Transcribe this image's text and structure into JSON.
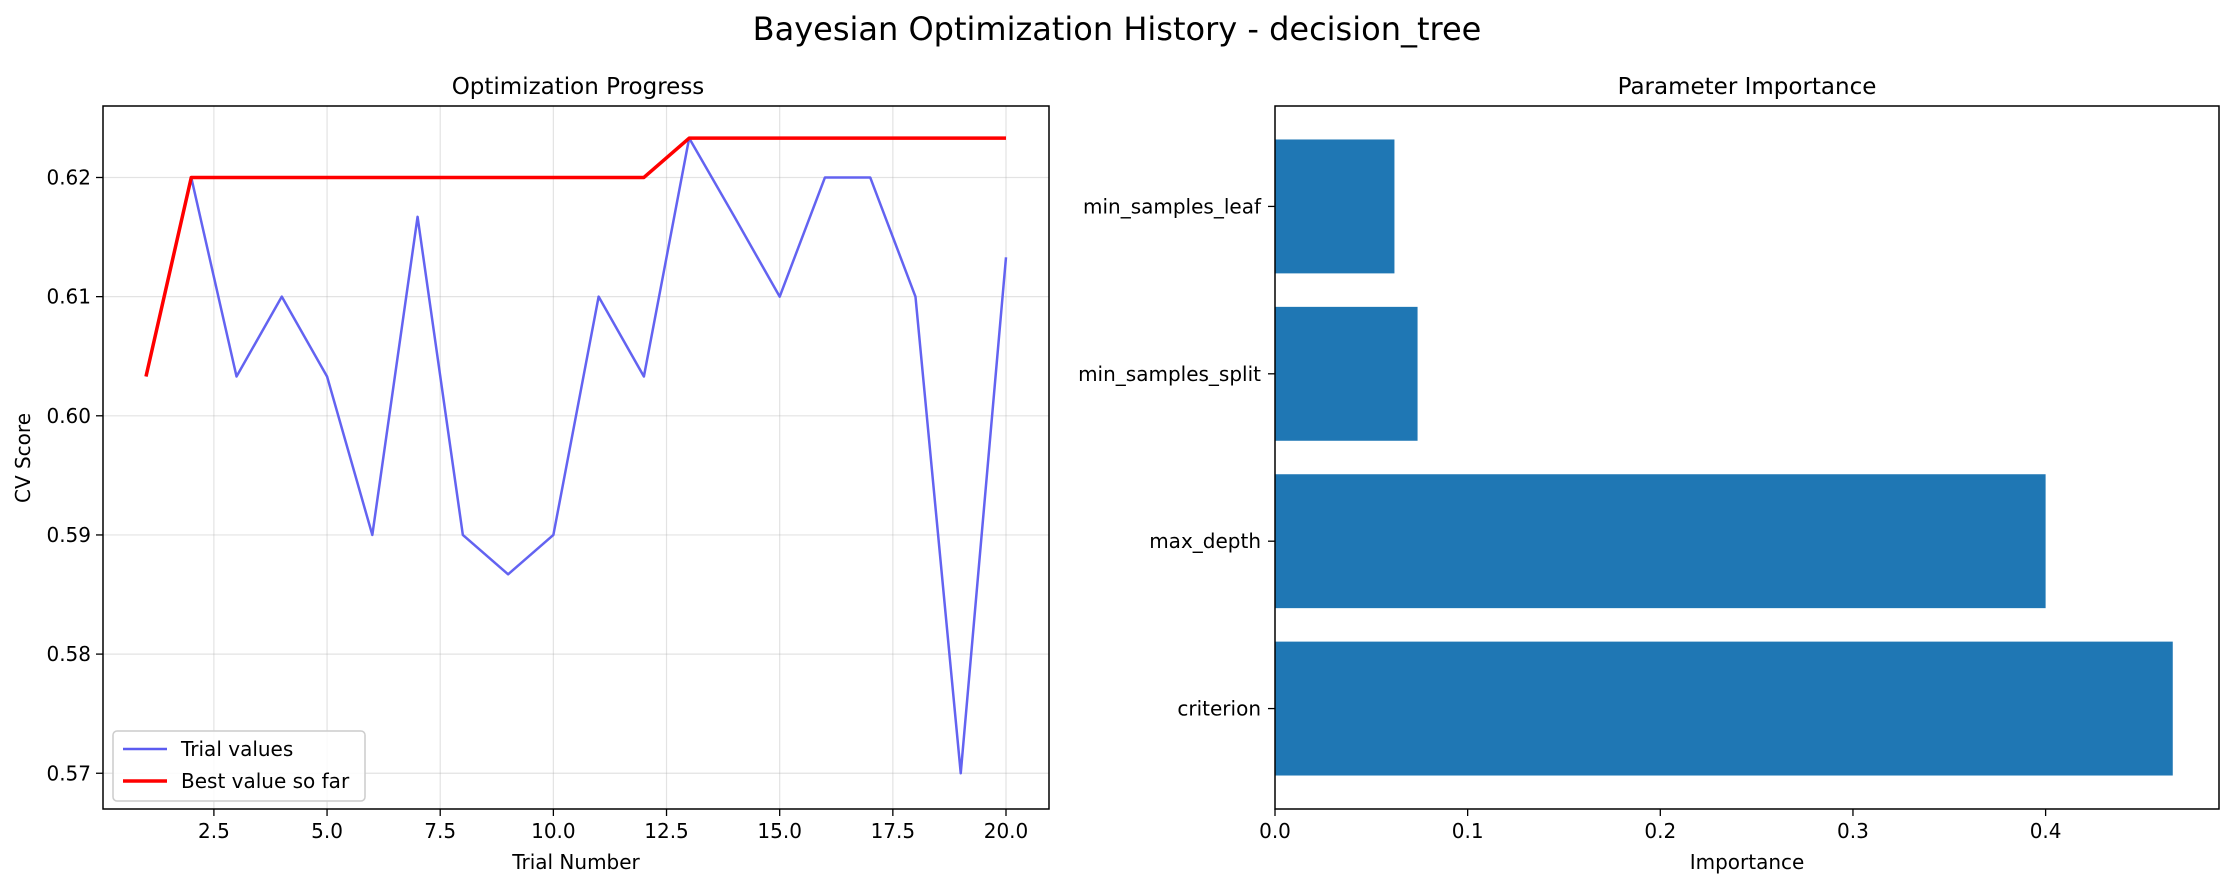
{
  "figure": {
    "title": "Bayesian Optimization History - decision_tree"
  },
  "chart_data": [
    {
      "type": "line",
      "title": "Optimization Progress",
      "xlabel": "Trial Number",
      "ylabel": "CV Score",
      "xlim": [
        0.05,
        20.95
      ],
      "ylim": [
        0.567,
        0.626
      ],
      "xticks": [
        "2.5",
        "5.0",
        "7.5",
        "10.0",
        "12.5",
        "15.0",
        "17.5",
        "20.0"
      ],
      "yticks": [
        "0.57",
        "0.58",
        "0.59",
        "0.60",
        "0.61",
        "0.62"
      ],
      "grid": true,
      "legend_position": "lower-left",
      "x": [
        1,
        2,
        3,
        4,
        5,
        6,
        7,
        8,
        9,
        10,
        11,
        12,
        13,
        14,
        15,
        16,
        17,
        18,
        19,
        20
      ],
      "series": [
        {
          "name": "Trial values",
          "color": "#5b5bf0",
          "values": [
            0.6033,
            0.62,
            0.6033,
            0.61,
            0.6033,
            0.59,
            0.6167,
            0.59,
            0.5867,
            0.59,
            0.61,
            0.6033,
            0.6233,
            0.6167,
            0.61,
            0.62,
            0.62,
            0.61,
            0.57,
            0.6133
          ]
        },
        {
          "name": "Best value so far",
          "color": "#ff0000",
          "values": [
            0.6033,
            0.62,
            0.62,
            0.62,
            0.62,
            0.62,
            0.62,
            0.62,
            0.62,
            0.62,
            0.62,
            0.62,
            0.6233,
            0.6233,
            0.6233,
            0.6233,
            0.6233,
            0.6233,
            0.6233,
            0.6233
          ]
        }
      ]
    },
    {
      "type": "bar",
      "orientation": "horizontal",
      "title": "Parameter Importance",
      "xlabel": "Importance",
      "ylabel": "",
      "xlim": [
        0,
        0.49
      ],
      "xticks": [
        "0.0",
        "0.1",
        "0.2",
        "0.3",
        "0.4"
      ],
      "grid": false,
      "color": "#1f77b4",
      "categories": [
        "criterion",
        "max_depth",
        "min_samples_split",
        "min_samples_leaf"
      ],
      "values": [
        0.466,
        0.4,
        0.074,
        0.062
      ]
    }
  ]
}
